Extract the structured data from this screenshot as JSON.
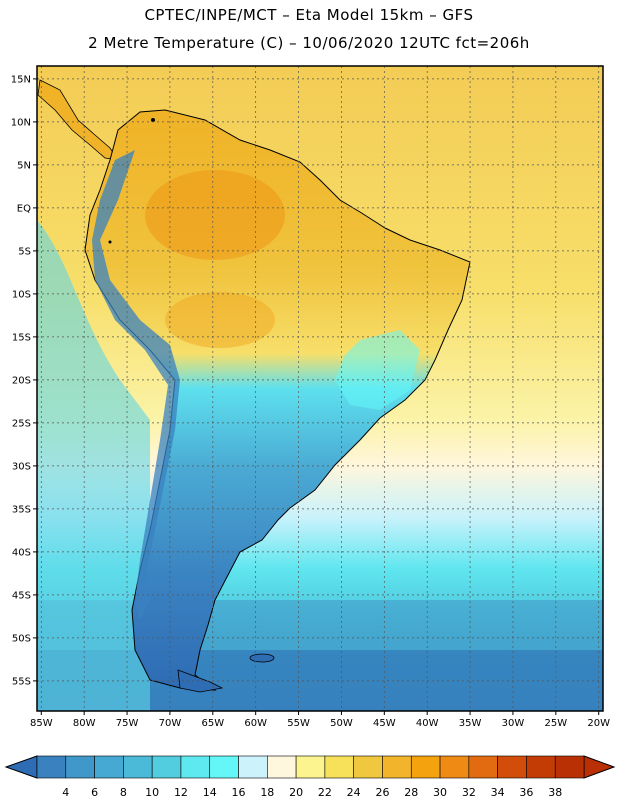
{
  "header": {
    "line1": "CPTEC/INPE/MCT –  Eta Model 15km – GFS",
    "line2": "2 Metre Temperature (C) – 10/06/2020 12UTC fct=206h"
  },
  "map": {
    "lat_labels": [
      "15N",
      "10N",
      "5N",
      "EQ",
      "5S",
      "10S",
      "15S",
      "20S",
      "25S",
      "30S",
      "35S",
      "40S",
      "45S",
      "50S",
      "55S"
    ],
    "lat_values": [
      15,
      10,
      5,
      0,
      -5,
      -10,
      -15,
      -20,
      -25,
      -30,
      -35,
      -40,
      -45,
      -50,
      -55
    ],
    "lon_labels": [
      "85W",
      "80W",
      "75W",
      "70W",
      "65W",
      "60W",
      "55W",
      "50W",
      "45W",
      "40W",
      "35W",
      "30W",
      "25W",
      "20W"
    ],
    "lon_values": [
      -85,
      -80,
      -75,
      -70,
      -65,
      -60,
      -55,
      -50,
      -45,
      -40,
      -35,
      -30,
      -25,
      -20
    ],
    "extent": {
      "lon_min": -85.5,
      "lon_max": -19.5,
      "lat_min": -58.5,
      "lat_max": 16.5
    }
  },
  "colorbar": {
    "labels": [
      "4",
      "6",
      "8",
      "10",
      "12",
      "14",
      "16",
      "18",
      "20",
      "22",
      "24",
      "26",
      "28",
      "30",
      "32",
      "34",
      "36",
      "38"
    ],
    "colors": [
      "#2e6db4",
      "#3a81c0",
      "#3f98c9",
      "#46a9d4",
      "#4bbad8",
      "#52cde0",
      "#5ee8f0",
      "#65f7f7",
      "#ccf3fb",
      "#fff7dd",
      "#fbf48f",
      "#f7e05a",
      "#f0c840",
      "#f2b42a",
      "#f4a20e",
      "#ef8a14",
      "#e26a10",
      "#d24c0a",
      "#c43c05",
      "#b83003"
    ]
  }
}
